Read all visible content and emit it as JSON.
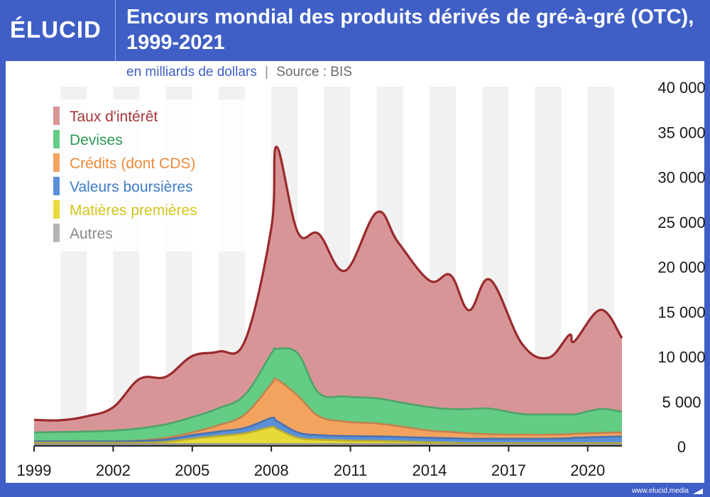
{
  "brand": {
    "logo_text": "ÉLUCID",
    "footer_url": "www.elucid.media"
  },
  "chart_data": {
    "type": "area",
    "stacked": true,
    "title": "Encours mondial des produits dérivés de gré-à-gré (OTC), 1999-2021",
    "subtitle_units": "en milliards de dollars",
    "subtitle_source": "Source : BIS",
    "subtitle_separator": "|",
    "xlabel": "",
    "ylabel": "",
    "xlim": [
      1999,
      2021.3
    ],
    "ylim": [
      0,
      40000
    ],
    "x_ticks": [
      1999,
      2002,
      2005,
      2008,
      2011,
      2014,
      2017,
      2020
    ],
    "y_ticks": [
      0,
      5000,
      10000,
      15000,
      20000,
      25000,
      30000,
      35000,
      40000
    ],
    "y_tick_labels": [
      "0",
      "5 000",
      "10 000",
      "15 000",
      "20 000",
      "25 000",
      "30 000",
      "35 000",
      "40 000"
    ],
    "y_axis_position": "right",
    "grid": "alternating vertical bands",
    "legend_position": "top-left",
    "x": [
      1999,
      2000,
      2001,
      2002,
      2003,
      2004,
      2005,
      2006,
      2007,
      2008,
      2008.2,
      2009,
      2009.8,
      2010.8,
      2012,
      2012.8,
      2014,
      2014.8,
      2015.5,
      2016.3,
      2017.5,
      2018.5,
      2019.3,
      2019.5,
      2020.5,
      2021.3
    ],
    "series": [
      {
        "name": "Autres",
        "color": "#b5b5b5",
        "values": [
          200,
          200,
          200,
          200,
          200,
          200,
          200,
          200,
          200,
          200,
          200,
          200,
          200,
          200,
          200,
          200,
          150,
          150,
          150,
          150,
          150,
          150,
          150,
          150,
          150,
          150
        ]
      },
      {
        "name": "Matières premières",
        "color": "#e8d93a",
        "values": [
          150,
          150,
          150,
          150,
          150,
          250,
          600,
          900,
          1200,
          1900,
          1700,
          700,
          500,
          400,
          350,
          300,
          250,
          200,
          150,
          150,
          150,
          150,
          150,
          150,
          150,
          150
        ]
      },
      {
        "name": "Valeurs boursières",
        "color": "#5b8fd8",
        "values": [
          150,
          150,
          150,
          150,
          200,
          250,
          400,
          500,
          600,
          1000,
          900,
          600,
          500,
          500,
          500,
          500,
          500,
          500,
          500,
          500,
          500,
          500,
          550,
          600,
          700,
          750
        ]
      },
      {
        "name": "Crédits (dont CDS)",
        "color": "#f4a35f",
        "values": [
          0,
          0,
          0,
          0,
          50,
          200,
          300,
          700,
          1500,
          3800,
          4600,
          4100,
          2100,
          1600,
          1450,
          1200,
          800,
          700,
          600,
          500,
          450,
          450,
          450,
          450,
          450,
          450
        ]
      },
      {
        "name": "Devises",
        "color": "#63cc85",
        "values": [
          1000,
          1050,
          1100,
          1200,
          1350,
          1500,
          1700,
          1900,
          2200,
          3400,
          3400,
          4700,
          2600,
          2800,
          2800,
          2700,
          2600,
          2550,
          2700,
          2850,
          2300,
          2250,
          2200,
          2150,
          2650,
          2300
        ]
      },
      {
        "name": "Taux d'intérêt",
        "color": "#d89597",
        "line_color": "#9a2a2d",
        "values": [
          1400,
          1300,
          1700,
          2600,
          5500,
          5300,
          6800,
          6300,
          6000,
          14000,
          22500,
          13500,
          17700,
          14000,
          20700,
          17800,
          14100,
          14900,
          11000,
          14350,
          7850,
          6300,
          8850,
          8150,
          11050,
          8200
        ]
      }
    ],
    "legend_order": [
      "Taux d'intérêt",
      "Devises",
      "Crédits (dont CDS)",
      "Valeurs boursières",
      "Matières premières",
      "Autres"
    ]
  }
}
